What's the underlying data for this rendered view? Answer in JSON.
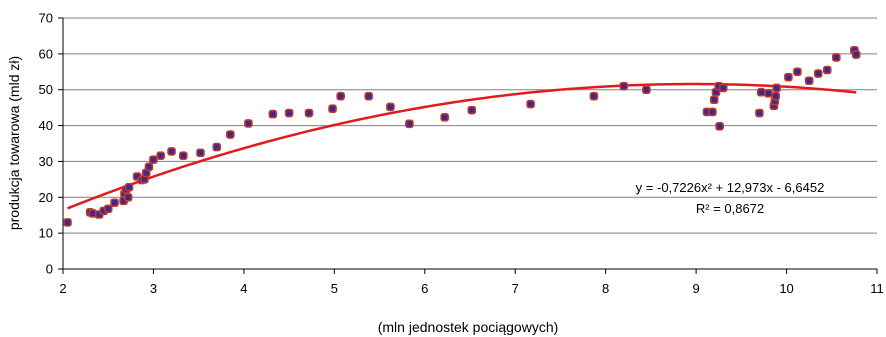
{
  "chart_data": {
    "type": "scatter",
    "xlabel": "(mln jednostek pociągowych)",
    "ylabel": "produkcja towarowa (mld zł)",
    "xlim": [
      2,
      11
    ],
    "ylim": [
      0,
      70
    ],
    "xticks": [
      2,
      3,
      4,
      5,
      6,
      7,
      8,
      9,
      10,
      11
    ],
    "yticks": [
      0,
      10,
      20,
      30,
      40,
      50,
      60,
      70
    ],
    "grid": "horizontal",
    "colors": {
      "point_fill": "#3b2a8c",
      "point_edge": "#c0392b",
      "trend": "#e31a1c",
      "grid": "#808080"
    },
    "points": [
      [
        2.05,
        13.0
      ],
      [
        2.3,
        15.8
      ],
      [
        2.33,
        15.5
      ],
      [
        2.4,
        15.2
      ],
      [
        2.45,
        16.2
      ],
      [
        2.5,
        16.8
      ],
      [
        2.57,
        18.5
      ],
      [
        2.67,
        19.0
      ],
      [
        2.68,
        21.0
      ],
      [
        2.7,
        22.2
      ],
      [
        2.72,
        20.0
      ],
      [
        2.73,
        22.8
      ],
      [
        2.82,
        25.8
      ],
      [
        2.87,
        24.8
      ],
      [
        2.9,
        25.0
      ],
      [
        2.92,
        26.8
      ],
      [
        2.95,
        28.5
      ],
      [
        3.0,
        30.5
      ],
      [
        3.08,
        31.6
      ],
      [
        3.2,
        32.8
      ],
      [
        3.33,
        31.6
      ],
      [
        3.52,
        32.4
      ],
      [
        3.7,
        34.0
      ],
      [
        3.85,
        37.5
      ],
      [
        4.05,
        40.6
      ],
      [
        4.32,
        43.2
      ],
      [
        4.5,
        43.5
      ],
      [
        4.72,
        43.5
      ],
      [
        4.98,
        44.7
      ],
      [
        5.07,
        48.2
      ],
      [
        5.38,
        48.2
      ],
      [
        5.62,
        45.2
      ],
      [
        5.83,
        40.5
      ],
      [
        6.22,
        42.3
      ],
      [
        6.52,
        44.3
      ],
      [
        7.17,
        46.0
      ],
      [
        7.87,
        48.2
      ],
      [
        8.2,
        51.0
      ],
      [
        8.45,
        50.0
      ],
      [
        9.12,
        43.8
      ],
      [
        9.18,
        43.8
      ],
      [
        9.2,
        47.2
      ],
      [
        9.22,
        49.3
      ],
      [
        9.25,
        51.0
      ],
      [
        9.26,
        39.8
      ],
      [
        9.3,
        50.5
      ],
      [
        9.7,
        43.5
      ],
      [
        9.72,
        49.3
      ],
      [
        9.8,
        49.0
      ],
      [
        9.86,
        45.5
      ],
      [
        9.87,
        46.8
      ],
      [
        9.88,
        48.2
      ],
      [
        9.89,
        50.5
      ],
      [
        10.02,
        53.5
      ],
      [
        10.12,
        55.0
      ],
      [
        10.25,
        52.5
      ],
      [
        10.35,
        54.5
      ],
      [
        10.45,
        55.5
      ],
      [
        10.55,
        59.0
      ],
      [
        10.75,
        61.0
      ],
      [
        10.77,
        59.8
      ]
    ],
    "trendline": {
      "equation_text": "y = -0,7226x² + 12,973x - 6,6452",
      "r2_text": "R² = 0,8672",
      "a": -0.7226,
      "b": 12.973,
      "c": -6.6452,
      "x_from": 2.05,
      "x_to": 10.77
    }
  }
}
